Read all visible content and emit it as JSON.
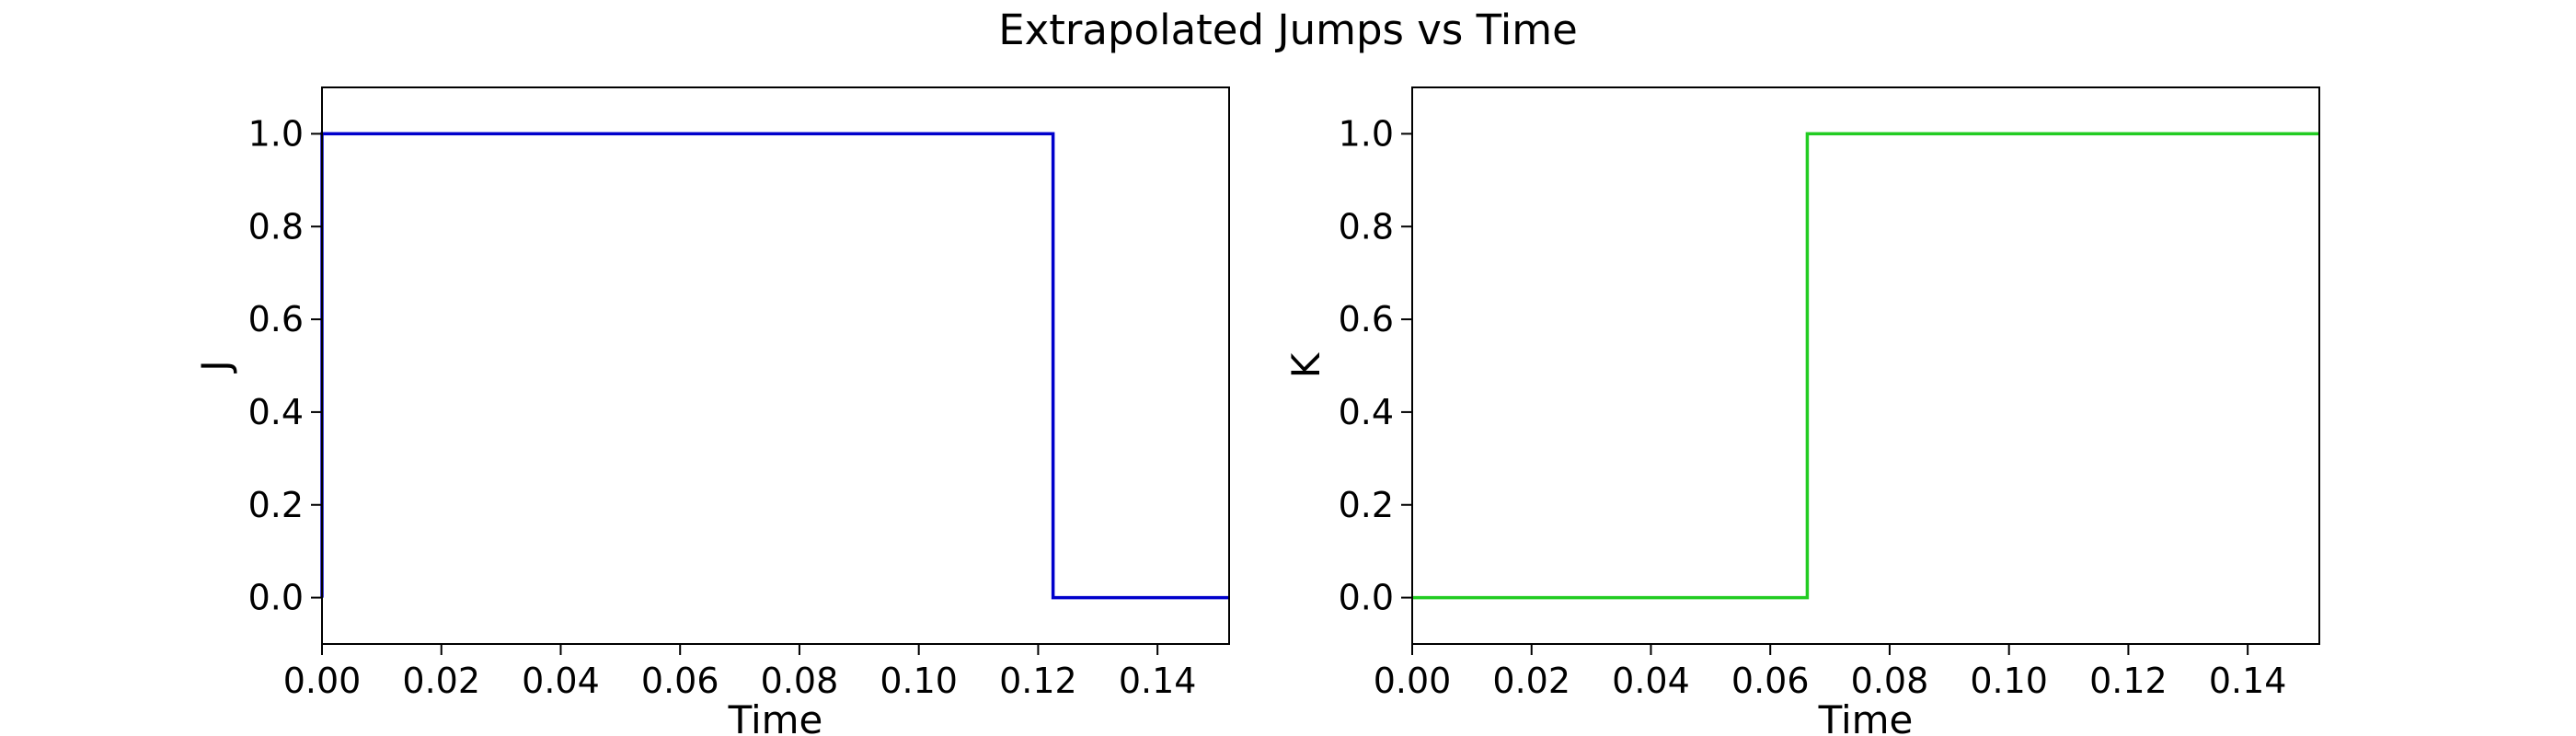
{
  "figure": {
    "title": "Extrapolated Jumps vs Time"
  },
  "chart_data": [
    {
      "type": "line",
      "step": true,
      "title": "",
      "xlabel": "Time",
      "ylabel": "J",
      "xlim": [
        0.0,
        0.152
      ],
      "ylim": [
        -0.1,
        1.1
      ],
      "xticks": [
        0.0,
        0.02,
        0.04,
        0.06,
        0.08,
        0.1,
        0.12,
        0.14
      ],
      "xtick_labels": [
        "0.00",
        "0.02",
        "0.04",
        "0.06",
        "0.08",
        "0.10",
        "0.12",
        "0.14"
      ],
      "yticks": [
        0.0,
        0.2,
        0.4,
        0.6,
        0.8,
        1.0
      ],
      "ytick_labels": [
        "0.0",
        "0.2",
        "0.4",
        "0.6",
        "0.8",
        "1.0"
      ],
      "grid": false,
      "series": [
        {
          "color": "#0000cc",
          "x": [
            0.0,
            0.0,
            0.1225,
            0.1225,
            0.152
          ],
          "y": [
            0.0,
            1.0,
            1.0,
            0.0,
            0.0
          ]
        }
      ]
    },
    {
      "type": "line",
      "step": true,
      "title": "",
      "xlabel": "Time",
      "ylabel": "K",
      "xlim": [
        0.0,
        0.152
      ],
      "ylim": [
        -0.1,
        1.1
      ],
      "xticks": [
        0.0,
        0.02,
        0.04,
        0.06,
        0.08,
        0.1,
        0.12,
        0.14
      ],
      "xtick_labels": [
        "0.00",
        "0.02",
        "0.04",
        "0.06",
        "0.08",
        "0.10",
        "0.12",
        "0.14"
      ],
      "yticks": [
        0.0,
        0.2,
        0.4,
        0.6,
        0.8,
        1.0
      ],
      "ytick_labels": [
        "0.0",
        "0.2",
        "0.4",
        "0.6",
        "0.8",
        "1.0"
      ],
      "grid": false,
      "series": [
        {
          "color": "#22cc22",
          "x": [
            0.0,
            0.0662,
            0.0662,
            0.152
          ],
          "y": [
            0.0,
            0.0,
            1.0,
            1.0
          ]
        }
      ]
    }
  ]
}
